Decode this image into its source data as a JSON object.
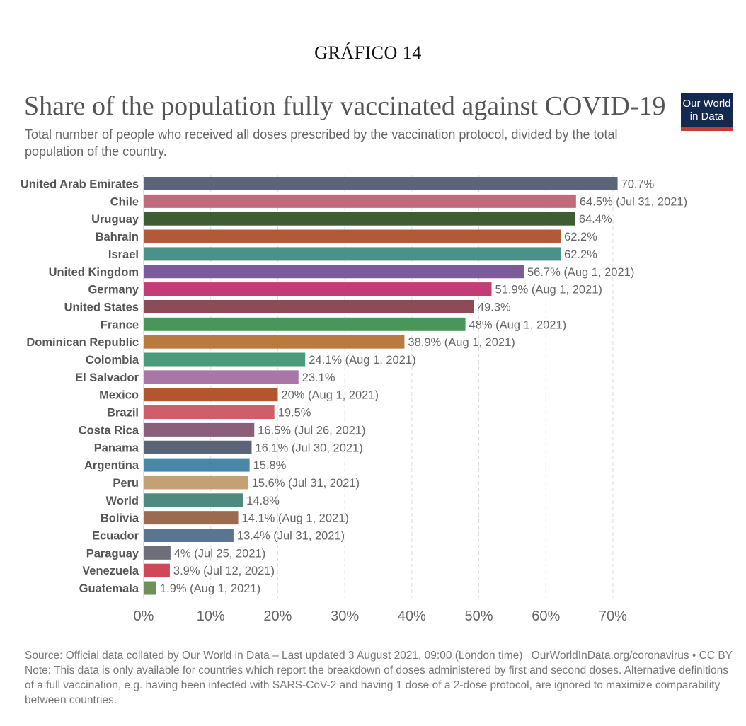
{
  "figure_label": "GRÁFICO 14",
  "logo": {
    "line1": "Our World",
    "line2": "in Data"
  },
  "footer": {
    "source": "Source: Official data collated by Our World in Data – Last updated 3 August 2021, 09:00 (London time)",
    "credit": "OurWorldInData.org/coronavirus • CC BY",
    "note": "Note: This data is only available for countries which report the breakdown of doses administered by first and second doses. Alternative definitions of a full vaccination, e.g. having been infected with SARS-CoV-2 and having 1 dose of a 2-dose protocol, are ignored to maximize comparability between countries."
  },
  "chart_data": {
    "type": "bar",
    "orientation": "horizontal",
    "title": "Share of the population fully vaccinated against COVID-19",
    "subtitle": "Total number of people who received all doses prescribed by the vaccination protocol, divided by the total population of the country.",
    "xlim": [
      0,
      70
    ],
    "x_ticks": [
      "0%",
      "10%",
      "20%",
      "30%",
      "40%",
      "50%",
      "60%",
      "70%"
    ],
    "grid": "vertical dashed",
    "bars": [
      {
        "label": "United Arab Emirates",
        "value": 70.7,
        "value_label": "70.7%",
        "color": "#5b6478"
      },
      {
        "label": "Chile",
        "value": 64.5,
        "value_label": "64.5% (Jul 31, 2021)",
        "color": "#c06a7b"
      },
      {
        "label": "Uruguay",
        "value": 64.4,
        "value_label": "64.4%",
        "color": "#3f5d34"
      },
      {
        "label": "Bahrain",
        "value": 62.2,
        "value_label": "62.2%",
        "color": "#b05a37"
      },
      {
        "label": "Israel",
        "value": 62.2,
        "value_label": "62.2%",
        "color": "#4a9189"
      },
      {
        "label": "United Kingdom",
        "value": 56.7,
        "value_label": "56.7% (Aug 1, 2021)",
        "color": "#7c5b9a"
      },
      {
        "label": "Germany",
        "value": 51.9,
        "value_label": "51.9% (Aug 1, 2021)",
        "color": "#c23d77"
      },
      {
        "label": "United States",
        "value": 49.3,
        "value_label": "49.3%",
        "color": "#8d4b57"
      },
      {
        "label": "France",
        "value": 48,
        "value_label": "48% (Aug 1, 2021)",
        "color": "#4a9559"
      },
      {
        "label": "Dominican Republic",
        "value": 38.9,
        "value_label": "38.9% (Aug 1, 2021)",
        "color": "#b97a3f"
      },
      {
        "label": "Colombia",
        "value": 24.1,
        "value_label": "24.1% (Aug 1, 2021)",
        "color": "#4b9a7b"
      },
      {
        "label": "El Salvador",
        "value": 23.1,
        "value_label": "23.1%",
        "color": "#a877a8"
      },
      {
        "label": "Mexico",
        "value": 20,
        "value_label": "20% (Aug 1, 2021)",
        "color": "#b1562f"
      },
      {
        "label": "Brazil",
        "value": 19.5,
        "value_label": "19.5%",
        "color": "#cf5d6a"
      },
      {
        "label": "Costa Rica",
        "value": 16.5,
        "value_label": "16.5% (Jul 26, 2021)",
        "color": "#8b5e7a"
      },
      {
        "label": "Panama",
        "value": 16.1,
        "value_label": "16.1% (Jul 30, 2021)",
        "color": "#5b6377"
      },
      {
        "label": "Argentina",
        "value": 15.8,
        "value_label": "15.8%",
        "color": "#4887a8"
      },
      {
        "label": "Peru",
        "value": 15.6,
        "value_label": "15.6% (Jul 31, 2021)",
        "color": "#c4a174"
      },
      {
        "label": "World",
        "value": 14.8,
        "value_label": "14.8%",
        "color": "#4e8a7e"
      },
      {
        "label": "Bolivia",
        "value": 14.1,
        "value_label": "14.1% (Aug 1, 2021)",
        "color": "#9c6a4e"
      },
      {
        "label": "Ecuador",
        "value": 13.4,
        "value_label": "13.4% (Jul 31, 2021)",
        "color": "#5a7592"
      },
      {
        "label": "Paraguay",
        "value": 4,
        "value_label": "4% (Jul 25, 2021)",
        "color": "#6e6e78"
      },
      {
        "label": "Venezuela",
        "value": 3.9,
        "value_label": "3.9% (Jul 12, 2021)",
        "color": "#d04857"
      },
      {
        "label": "Guatemala",
        "value": 1.9,
        "value_label": "1.9% (Aug 1, 2021)",
        "color": "#6f905a"
      }
    ]
  }
}
